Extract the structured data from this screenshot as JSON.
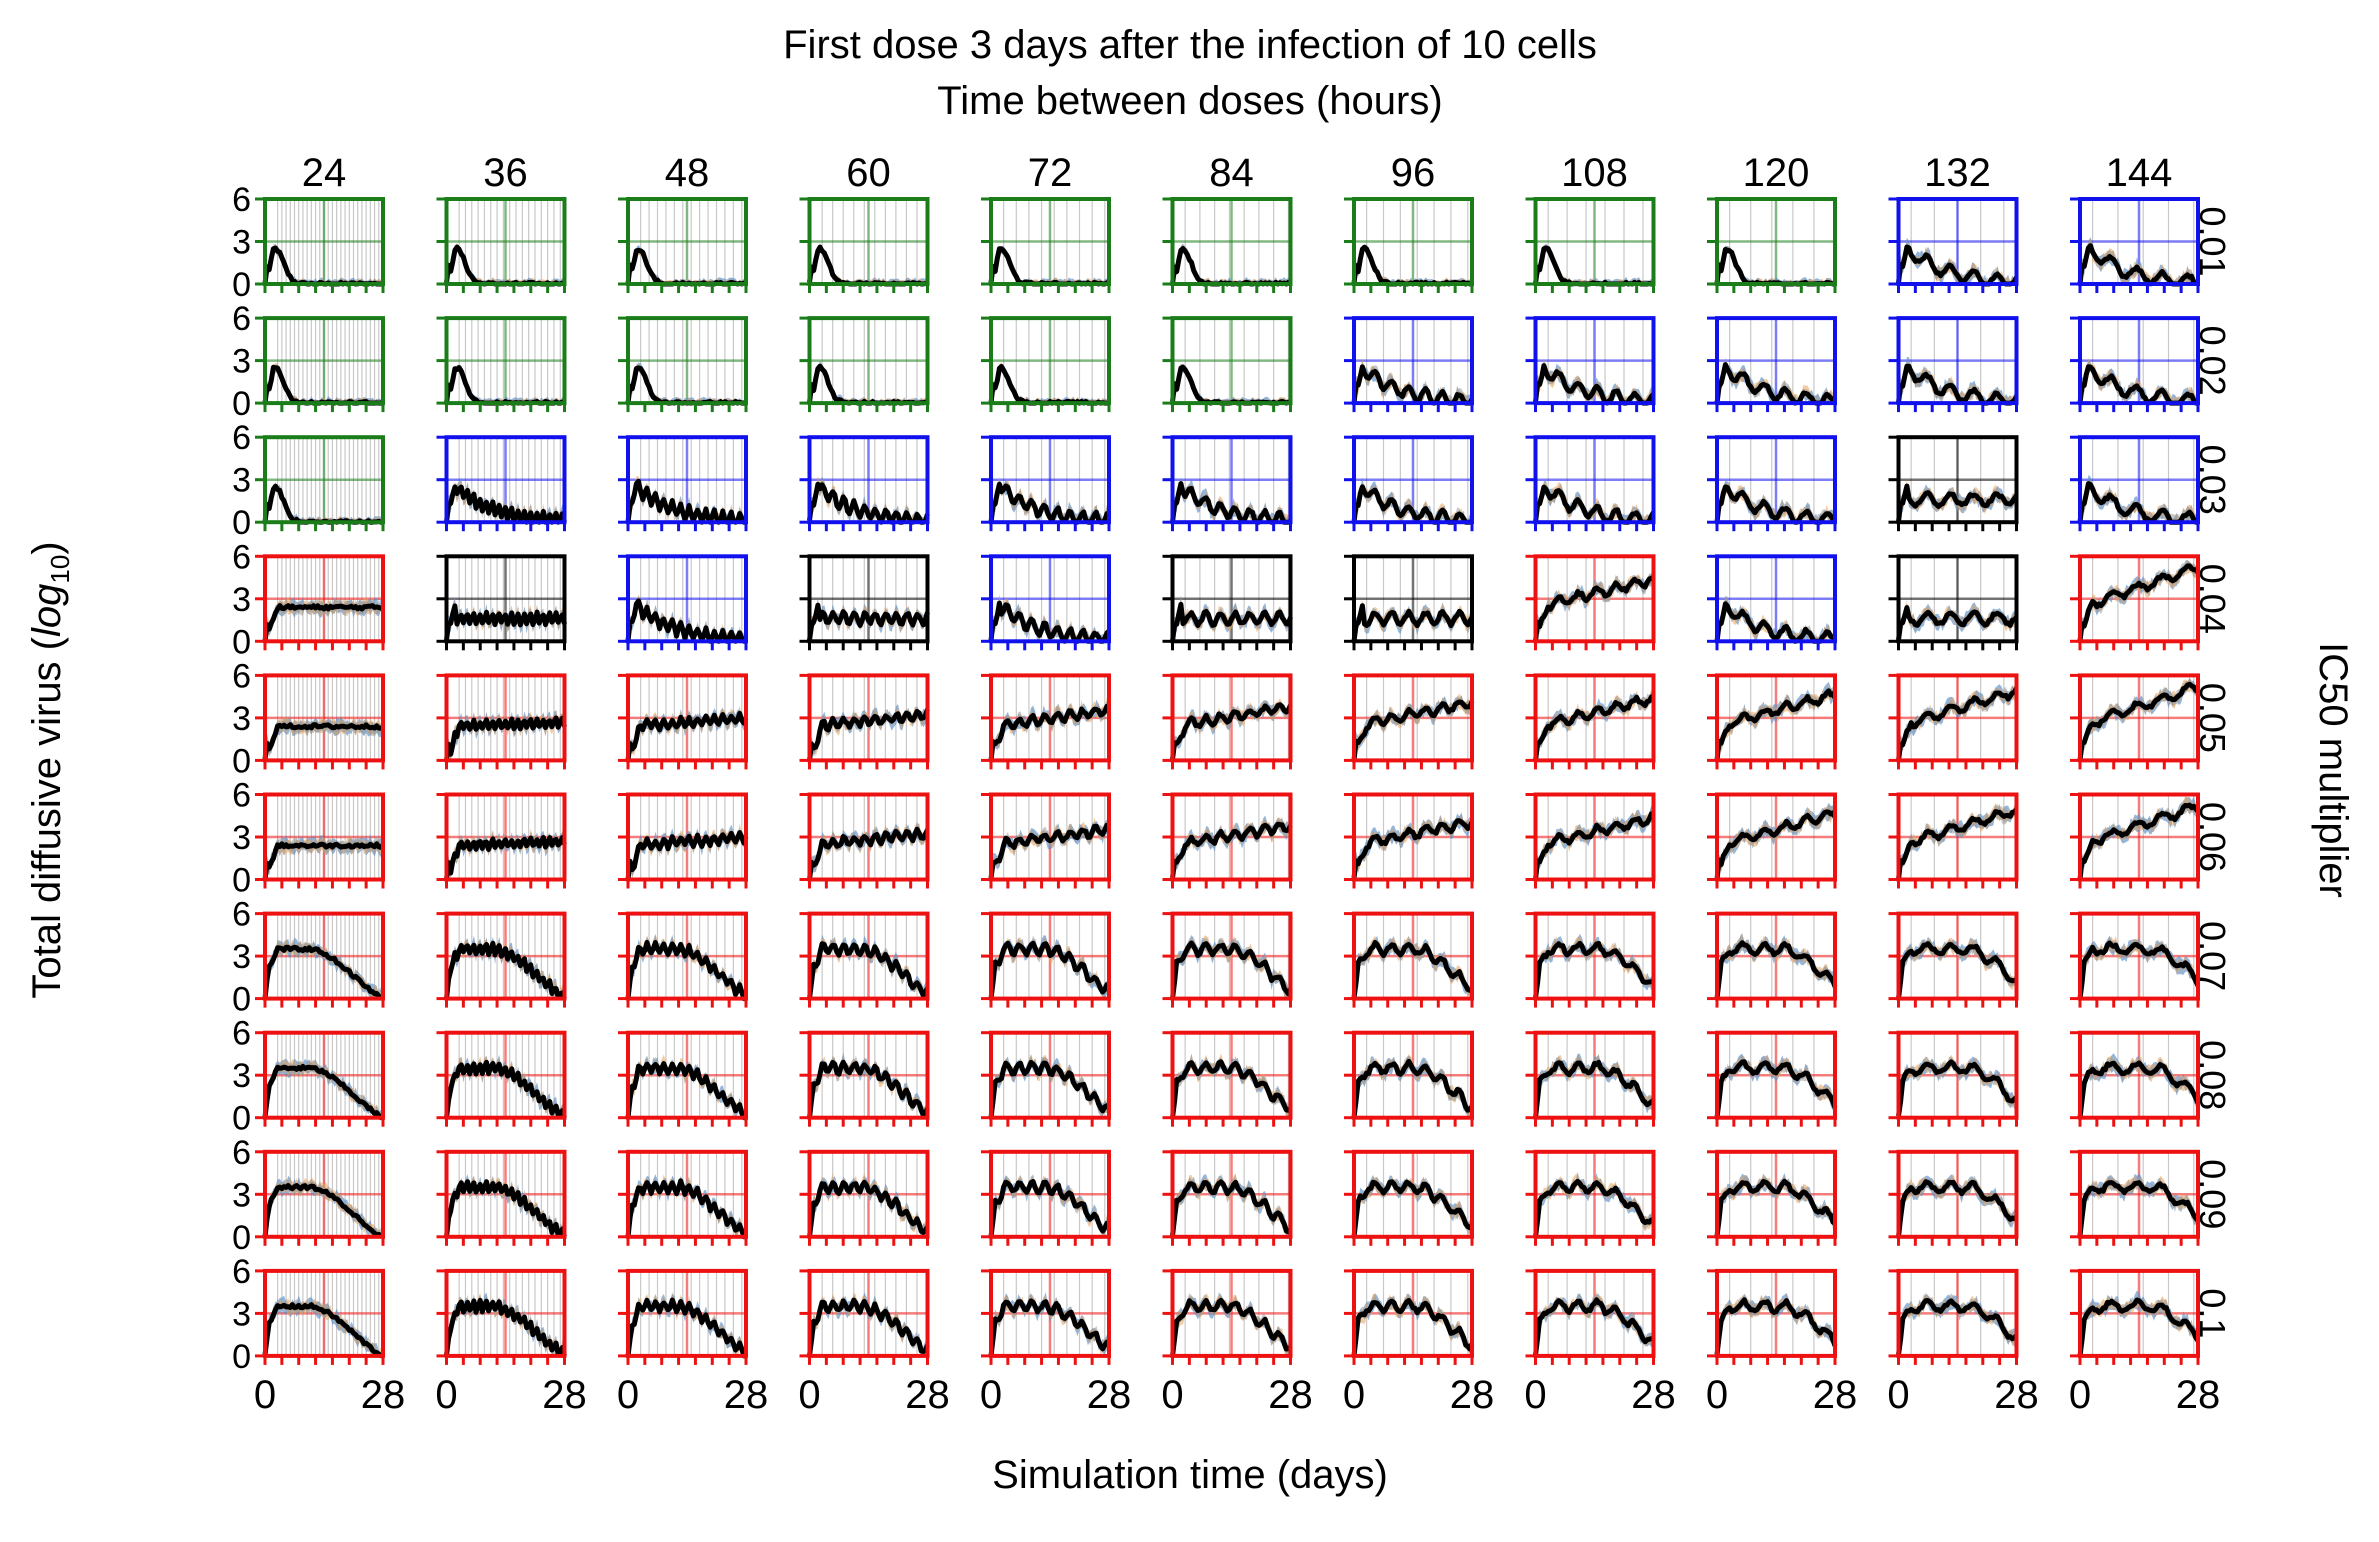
{
  "chart_data": {
    "type": "line",
    "title": "First dose 3 days after the infection of 10 cells",
    "subtitle": "Time between doses (hours)",
    "xlabel": "Simulation time (days)",
    "ylabel_main": "Total diffusive virus (",
    "ylabel_math": "log",
    "ylabel_sub": "10",
    "ylabel_end": ")",
    "right_label": "IC50 multiplier",
    "xlim": [
      0,
      28
    ],
    "ylim": [
      0,
      6
    ],
    "x_ticks": [
      "0",
      "28"
    ],
    "y_ticks": [
      "0",
      "3",
      "6"
    ],
    "columns": [
      "24",
      "36",
      "48",
      "60",
      "72",
      "84",
      "96",
      "108",
      "120",
      "132",
      "144"
    ],
    "rows": [
      "0.01",
      "0.02",
      "0.03",
      "0.04",
      "0.05",
      "0.06",
      "0.07",
      "0.08",
      "0.09",
      "0.1"
    ],
    "outcome_colors": {
      "G": "#1a7d1a",
      "B": "#1111ee",
      "K": "#000000",
      "R": "#ee1111"
    },
    "outcome_grid": [
      "GGGGGGGGGBB",
      "GGGGGGBBBBB",
      "GBBBBBBBBKB",
      "RKBKBKKRBKR",
      "RRRRRRRRRRR",
      "RRRRRRRRRRR",
      "RRRRRRRRRRR",
      "RRRRRRRRRRR",
      "RRRRRRRRRRR",
      "RRRRRRRRRRR"
    ],
    "series_colors": {
      "mean": "#000000",
      "band_a": "#5b8fc7",
      "band_b": "#e8a35a",
      "band_c": "#9a9a9a"
    }
  }
}
